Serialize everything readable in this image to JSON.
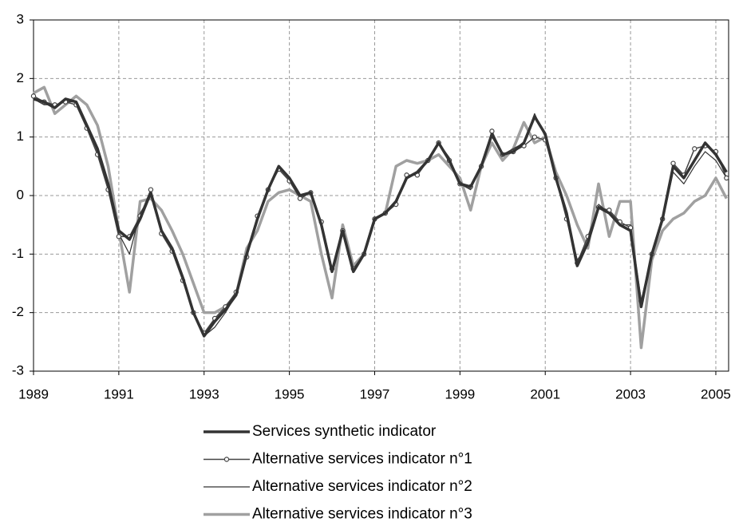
{
  "chart_data": {
    "type": "line",
    "x": [
      1989,
      1989.25,
      1989.5,
      1989.75,
      1990,
      1990.25,
      1990.5,
      1990.75,
      1991,
      1991.25,
      1991.5,
      1991.75,
      1992,
      1992.25,
      1992.5,
      1992.75,
      1993,
      1993.25,
      1993.5,
      1993.75,
      1994,
      1994.25,
      1994.5,
      1994.75,
      1995,
      1995.25,
      1995.5,
      1995.75,
      1996,
      1996.25,
      1996.5,
      1996.75,
      1997,
      1997.25,
      1997.5,
      1997.75,
      1998,
      1998.25,
      1998.5,
      1998.75,
      1999,
      1999.25,
      1999.5,
      1999.75,
      2000,
      2000.25,
      2000.5,
      2000.75,
      2001,
      2001.25,
      2001.5,
      2001.75,
      2002,
      2002.25,
      2002.5,
      2002.75,
      2003,
      2003.25,
      2003.5,
      2003.75,
      2004,
      2004.25,
      2004.5,
      2004.75,
      2005,
      2005.25
    ],
    "series": [
      {
        "name": "Services synthetic indicator",
        "color": "#333333",
        "values": [
          1.65,
          1.6,
          1.5,
          1.65,
          1.6,
          1.2,
          0.8,
          0.2,
          -0.6,
          -0.75,
          -0.4,
          0.05,
          -0.6,
          -0.9,
          -1.4,
          -2.0,
          -2.4,
          -2.15,
          -1.95,
          -1.7,
          -1.0,
          -0.4,
          0.1,
          0.5,
          0.3,
          0.0,
          0.05,
          -0.5,
          -1.3,
          -0.6,
          -1.3,
          -1.0,
          -0.4,
          -0.3,
          -0.1,
          0.3,
          0.4,
          0.6,
          0.9,
          0.6,
          0.2,
          0.15,
          0.5,
          1.05,
          0.7,
          0.75,
          0.9,
          1.35,
          1.05,
          0.3,
          -0.3,
          -1.2,
          -0.8,
          -0.2,
          -0.3,
          -0.5,
          -0.6,
          -1.9,
          -1.0,
          -0.4,
          0.5,
          0.3,
          0.6,
          0.9,
          0.7,
          0.4
        ]
      },
      {
        "name": "Alternative services indicator n°1",
        "color": "#444444",
        "marker": "circle",
        "values": [
          1.7,
          1.6,
          1.55,
          1.6,
          1.55,
          1.15,
          0.7,
          0.1,
          -0.7,
          -0.7,
          -0.35,
          0.1,
          -0.65,
          -0.95,
          -1.45,
          -2.0,
          -2.35,
          -2.1,
          -1.9,
          -1.65,
          -1.05,
          -0.35,
          0.1,
          0.45,
          0.25,
          -0.05,
          0.05,
          -0.45,
          -1.25,
          -0.6,
          -1.25,
          -1.0,
          -0.4,
          -0.3,
          -0.15,
          0.35,
          0.35,
          0.6,
          0.9,
          0.6,
          0.2,
          0.15,
          0.5,
          1.1,
          0.7,
          0.75,
          0.85,
          1.0,
          0.95,
          0.3,
          -0.4,
          -1.15,
          -0.7,
          -0.2,
          -0.25,
          -0.45,
          -0.55,
          -1.8,
          -1.0,
          -0.4,
          0.55,
          0.35,
          0.8,
          0.85,
          0.75,
          0.3
        ]
      },
      {
        "name": "Alternative services indicator n°2",
        "color": "#333333",
        "values": [
          1.65,
          1.55,
          1.55,
          1.6,
          1.6,
          1.2,
          0.75,
          0.15,
          -0.65,
          -1.0,
          -0.3,
          0.0,
          -0.6,
          -0.95,
          -1.4,
          -2.0,
          -2.4,
          -2.25,
          -2.0,
          -1.7,
          -1.0,
          -0.4,
          0.1,
          0.5,
          0.3,
          0.0,
          0.05,
          -0.5,
          -1.3,
          -0.6,
          -1.3,
          -1.0,
          -0.4,
          -0.3,
          -0.1,
          0.3,
          0.4,
          0.6,
          0.9,
          0.65,
          0.2,
          0.1,
          0.55,
          1.0,
          0.7,
          0.8,
          0.9,
          1.4,
          1.0,
          0.35,
          -0.3,
          -1.1,
          -0.85,
          -0.15,
          -0.3,
          -0.5,
          -0.5,
          -1.9,
          -1.0,
          -0.45,
          0.4,
          0.2,
          0.5,
          0.75,
          0.6,
          0.3
        ]
      },
      {
        "name": "Alternative services indicator n°3",
        "color": "#a0a0a0",
        "values": [
          1.75,
          1.85,
          1.4,
          1.55,
          1.7,
          1.55,
          1.2,
          0.5,
          -0.6,
          -1.65,
          -0.1,
          -0.05,
          -0.25,
          -0.6,
          -1.0,
          -1.5,
          -2.0,
          -2.0,
          -1.9,
          -1.7,
          -0.9,
          -0.6,
          -0.1,
          0.05,
          0.1,
          0.0,
          -0.1,
          -1.0,
          -1.75,
          -0.5,
          -1.2,
          -1.0,
          -0.4,
          -0.3,
          0.5,
          0.6,
          0.55,
          0.6,
          0.7,
          0.5,
          0.3,
          -0.25,
          0.5,
          0.9,
          0.6,
          0.8,
          1.25,
          0.9,
          1.0,
          0.4,
          0.0,
          -0.5,
          -0.9,
          0.2,
          -0.7,
          -0.1,
          -0.1,
          -2.6,
          -1.1,
          -0.6,
          -0.4,
          -0.3,
          -0.1,
          0.0,
          0.3,
          -0.05
        ]
      }
    ],
    "xlim": [
      1989,
      2005.3
    ],
    "xticks": [
      1989,
      1991,
      1993,
      1995,
      1997,
      1999,
      2001,
      2003,
      2005
    ],
    "ylim": [
      -3,
      3
    ],
    "yticks": [
      -3,
      -2,
      -1,
      0,
      1,
      2,
      3
    ],
    "grid": true,
    "legend": "bottom"
  }
}
